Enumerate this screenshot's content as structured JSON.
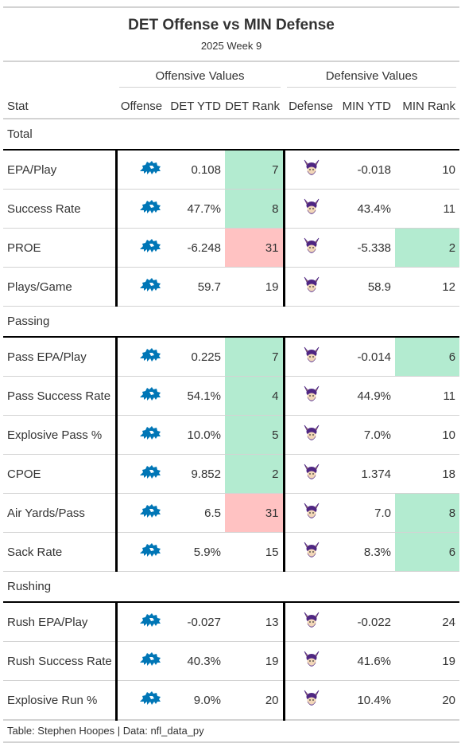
{
  "title": "DET Offense vs MIN Defense",
  "subtitle": "2025 Week 9",
  "spanners": {
    "offense": "Offensive Values",
    "defense": "Defensive Values"
  },
  "columns": [
    "Stat",
    "Offense",
    "DET YTD",
    "DET Rank",
    "Defense",
    "MIN YTD",
    "MIN Rank"
  ],
  "icons": {
    "offense_logo": "lions-logo-icon",
    "defense_logo": "vikings-logo-icon"
  },
  "colors": {
    "good": "#b3ebd0",
    "bad": "#ffc2c2",
    "lions_blue": "#0076B6",
    "vikings_purple": "#4F2683",
    "vikings_gold": "#FFC62F"
  },
  "groups": [
    {
      "label": "Total",
      "rows": [
        {
          "stat": "EPA/Play",
          "det_ytd": "0.108",
          "det_rank": "7",
          "det_rank_color": "good",
          "min_ytd": "-0.018",
          "min_rank": "10",
          "min_rank_color": ""
        },
        {
          "stat": "Success Rate",
          "det_ytd": "47.7%",
          "det_rank": "8",
          "det_rank_color": "good",
          "min_ytd": "43.4%",
          "min_rank": "11",
          "min_rank_color": ""
        },
        {
          "stat": "PROE",
          "det_ytd": "-6.248",
          "det_rank": "31",
          "det_rank_color": "bad",
          "min_ytd": "-5.338",
          "min_rank": "2",
          "min_rank_color": "good"
        },
        {
          "stat": "Plays/Game",
          "det_ytd": "59.7",
          "det_rank": "19",
          "det_rank_color": "",
          "min_ytd": "58.9",
          "min_rank": "12",
          "min_rank_color": ""
        }
      ]
    },
    {
      "label": "Passing",
      "rows": [
        {
          "stat": "Pass EPA/Play",
          "det_ytd": "0.225",
          "det_rank": "7",
          "det_rank_color": "good",
          "min_ytd": "-0.014",
          "min_rank": "6",
          "min_rank_color": "good"
        },
        {
          "stat": "Pass Success Rate",
          "det_ytd": "54.1%",
          "det_rank": "4",
          "det_rank_color": "good",
          "min_ytd": "44.9%",
          "min_rank": "11",
          "min_rank_color": ""
        },
        {
          "stat": "Explosive Pass %",
          "det_ytd": "10.0%",
          "det_rank": "5",
          "det_rank_color": "good",
          "min_ytd": "7.0%",
          "min_rank": "10",
          "min_rank_color": ""
        },
        {
          "stat": "CPOE",
          "det_ytd": "9.852",
          "det_rank": "2",
          "det_rank_color": "good",
          "min_ytd": "1.374",
          "min_rank": "18",
          "min_rank_color": ""
        },
        {
          "stat": "Air Yards/Pass",
          "det_ytd": "6.5",
          "det_rank": "31",
          "det_rank_color": "bad",
          "min_ytd": "7.0",
          "min_rank": "8",
          "min_rank_color": "good"
        },
        {
          "stat": "Sack Rate",
          "det_ytd": "5.9%",
          "det_rank": "15",
          "det_rank_color": "",
          "min_ytd": "8.3%",
          "min_rank": "6",
          "min_rank_color": "good"
        }
      ]
    },
    {
      "label": "Rushing",
      "rows": [
        {
          "stat": "Rush EPA/Play",
          "det_ytd": "-0.027",
          "det_rank": "13",
          "det_rank_color": "",
          "min_ytd": "-0.022",
          "min_rank": "24",
          "min_rank_color": ""
        },
        {
          "stat": "Rush Success Rate",
          "det_ytd": "40.3%",
          "det_rank": "19",
          "det_rank_color": "",
          "min_ytd": "41.6%",
          "min_rank": "19",
          "min_rank_color": ""
        },
        {
          "stat": "Explosive Run %",
          "det_ytd": "9.0%",
          "det_rank": "20",
          "det_rank_color": "",
          "min_ytd": "10.4%",
          "min_rank": "20",
          "min_rank_color": ""
        }
      ]
    }
  ],
  "footer": "Table: Stephen Hoopes | Data: nfl_data_py"
}
